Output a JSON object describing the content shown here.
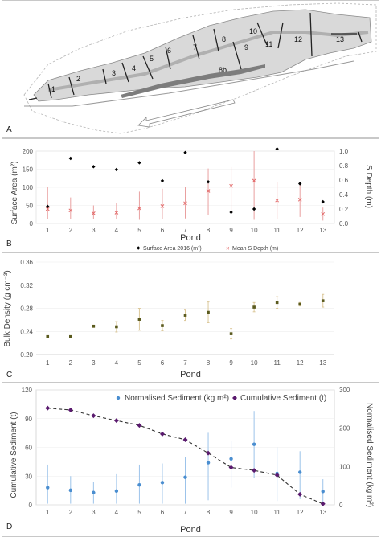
{
  "panels": {
    "a": {
      "letter": "A"
    },
    "b": {
      "letter": "B"
    },
    "c": {
      "letter": "C"
    },
    "d": {
      "letter": "D"
    }
  },
  "map": {
    "pond_labels": [
      "1",
      "2",
      "3",
      "4",
      "5",
      "6",
      "7",
      "8",
      "8b",
      "9",
      "10",
      "11",
      "12",
      "13"
    ]
  },
  "colors": {
    "black_marker": "#000000",
    "red_marker": "#e36b6b",
    "error_bar_red": "#e9a0a0",
    "olive_marker": "#5a5a1e",
    "error_bar_tan": "#dcc89a",
    "blue_marker": "#4a8ed0",
    "error_bar_blue": "#9cc3ea",
    "purple_marker": "#5a1a6e",
    "map_fill": "#d9d9d9",
    "map_outline": "#8a8a8a"
  },
  "chart_data": [
    {
      "type": "scatter",
      "categories": [
        "1",
        "2",
        "3",
        "4",
        "5",
        "6",
        "7",
        "8",
        "9",
        "10",
        "11",
        "12",
        "13"
      ],
      "xlabel": "Pond",
      "ylabel": "Surface Area (m²)",
      "ylabel_right": "S Depth (m)",
      "ylim": [
        0,
        200
      ],
      "yticks": [
        "0",
        "50",
        "100",
        "150",
        "200"
      ],
      "ylim_right": [
        0,
        1.0
      ],
      "yticks_right": [
        "0.0",
        "0.2",
        "0.4",
        "0.6",
        "0.8",
        "1.0"
      ],
      "series": [
        {
          "name": "Surface Area 2016 (m²)",
          "axis": "left",
          "values": [
            47,
            180,
            157,
            149,
            168,
            118,
            196,
            115,
            31,
            40,
            206,
            110,
            60
          ]
        },
        {
          "name": "Mean S Depth (m)",
          "axis": "right",
          "values": [
            0.2,
            0.18,
            0.14,
            0.15,
            0.21,
            0.24,
            0.28,
            0.45,
            0.52,
            0.59,
            0.32,
            0.33,
            0.13
          ],
          "err_low": [
            0.06,
            0.06,
            0.06,
            0.06,
            0.05,
            0.06,
            0.07,
            0.12,
            0.15,
            0.05,
            0.06,
            0.09,
            0.04
          ],
          "err_high": [
            0.5,
            0.36,
            0.25,
            0.28,
            0.44,
            0.48,
            0.5,
            0.76,
            0.78,
            1.0,
            0.57,
            0.53,
            0.22
          ]
        }
      ]
    },
    {
      "type": "scatter",
      "categories": [
        "1",
        "2",
        "3",
        "4",
        "5",
        "6",
        "7",
        "8",
        "9",
        "10",
        "11",
        "12",
        "13"
      ],
      "xlabel": "Pond",
      "ylabel": "Bulk Density (g cm⁻³)",
      "ylim": [
        0.2,
        0.36
      ],
      "yticks": [
        "0.20",
        "0.24",
        "0.28",
        "0.32",
        "0.36"
      ],
      "series": [
        {
          "values": [
            0.231,
            0.231,
            0.249,
            0.248,
            0.261,
            0.25,
            0.268,
            0.273,
            0.236,
            0.282,
            0.29,
            0.287,
            0.293
          ],
          "err": [
            0.001,
            0.001,
            0.002,
            0.009,
            0.019,
            0.009,
            0.009,
            0.018,
            0.009,
            0.008,
            0.01,
            0.003,
            0.011
          ]
        }
      ]
    },
    {
      "type": "line",
      "categories": [
        "1",
        "2",
        "3",
        "4",
        "5",
        "6",
        "7",
        "8",
        "9",
        "10",
        "11",
        "12",
        "13"
      ],
      "xlabel": "Pond",
      "ylabel": "Cumulative Sediment (t)",
      "ylabel_right": "Normalised Sediment  (kg m²)",
      "ylim": [
        0,
        120
      ],
      "yticks": [
        "0",
        "30",
        "60",
        "90",
        "120"
      ],
      "ylim_right": [
        0,
        300
      ],
      "yticks_right": [
        "0",
        "100",
        "200",
        "300"
      ],
      "series": [
        {
          "name": "Normalised Sediment (kg m²)",
          "axis": "right",
          "style": "points",
          "values": [
            45,
            38,
            32,
            36,
            52,
            58,
            72,
            110,
            120,
            158,
            82,
            85,
            35
          ],
          "err_low": [
            3,
            3,
            3,
            3,
            3,
            3,
            3,
            12,
            45,
            70,
            10,
            15,
            3
          ],
          "err_high": [
            105,
            75,
            60,
            80,
            105,
            108,
            125,
            188,
            168,
            245,
            150,
            140,
            67
          ]
        },
        {
          "name": "Cumulative Sediment (t)",
          "axis": "left",
          "style": "dashed-line",
          "values": [
            101,
            99,
            93,
            88,
            83,
            74,
            68,
            54,
            39,
            36,
            31,
            11,
            1
          ]
        }
      ]
    }
  ]
}
